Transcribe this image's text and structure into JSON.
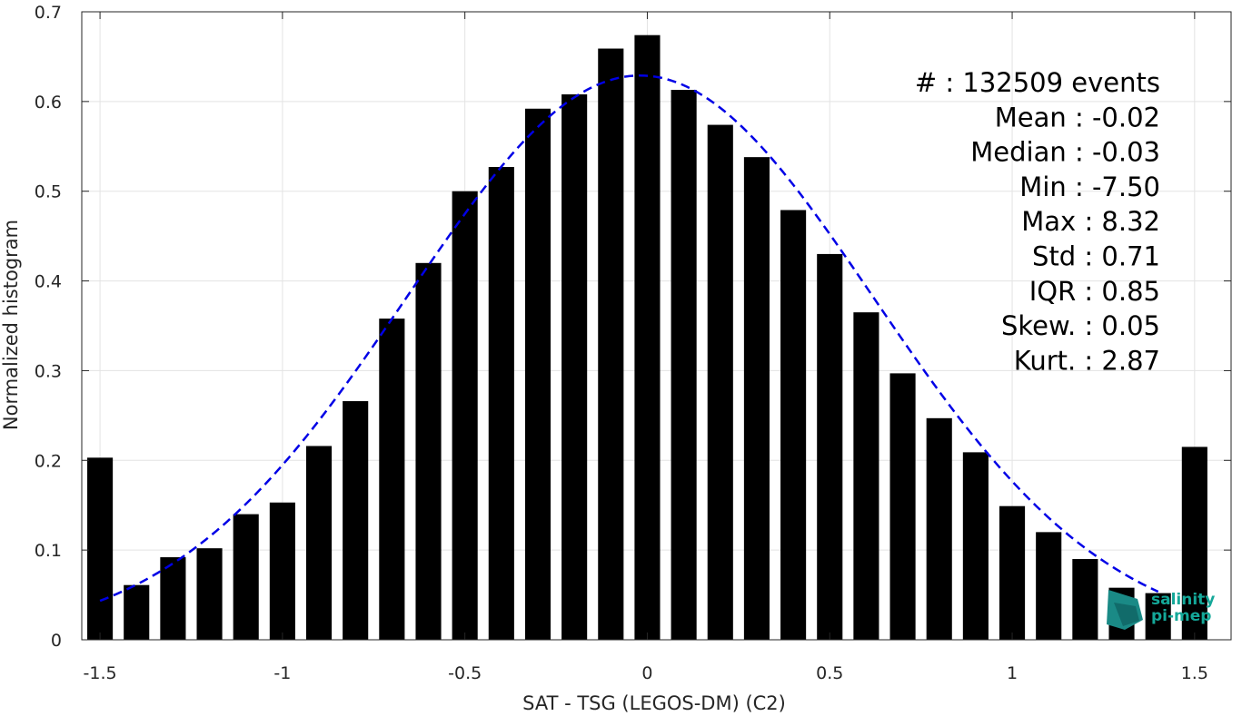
{
  "chart_data": {
    "type": "bar",
    "xlabel": "SAT - TSG (LEGOS-DM) (C2)",
    "ylabel": "Normalized histogram",
    "xlim": [
      -1.55,
      1.6
    ],
    "ylim": [
      0,
      0.7
    ],
    "xticks": [
      -1.5,
      -1,
      -0.5,
      0,
      0.5,
      1,
      1.5
    ],
    "xtick_labels": [
      "-1.5",
      "-1",
      "-0.5",
      "0",
      "0.5",
      "1",
      "1.5"
    ],
    "yticks": [
      0,
      0.1,
      0.2,
      0.3,
      0.4,
      0.5,
      0.6,
      0.7
    ],
    "ytick_labels": [
      "0",
      "0.1",
      "0.2",
      "0.3",
      "0.4",
      "0.5",
      "0.6",
      "0.7"
    ],
    "grid": true,
    "bar_color": "#000000",
    "fit_color": "#0000e6",
    "x": [
      -1.5,
      -1.4,
      -1.3,
      -1.2,
      -1.1,
      -1.0,
      -0.9,
      -0.8,
      -0.7,
      -0.6,
      -0.5,
      -0.4,
      -0.3,
      -0.2,
      -0.1,
      0.0,
      0.1,
      0.2,
      0.3,
      0.4,
      0.5,
      0.6,
      0.7,
      0.8,
      0.9,
      1.0,
      1.1,
      1.2,
      1.3,
      1.4,
      1.5
    ],
    "values": [
      0.203,
      0.061,
      0.092,
      0.102,
      0.14,
      0.153,
      0.216,
      0.266,
      0.358,
      0.42,
      0.5,
      0.527,
      0.592,
      0.608,
      0.659,
      0.674,
      0.613,
      0.574,
      0.538,
      0.479,
      0.43,
      0.365,
      0.297,
      0.247,
      0.209,
      0.149,
      0.12,
      0.09,
      0.058,
      0.052,
      0.215
    ],
    "fit": {
      "type": "gaussian",
      "style": "dashed",
      "mean": -0.02,
      "std": 0.64,
      "peak": 0.629,
      "x_range": [
        -1.5,
        1.4
      ]
    },
    "annotations": [
      "#  : 132509 events",
      "Mean : -0.02",
      "Median : -0.03",
      "Min : -7.50",
      "Max : 8.32",
      "Std : 0.71",
      "IQR : 0.85",
      "Skew. : 0.05",
      "Kurt. : 2.87"
    ]
  },
  "logo": {
    "line1": "salinity",
    "line2": "pi-mep",
    "color": "#14a899"
  }
}
